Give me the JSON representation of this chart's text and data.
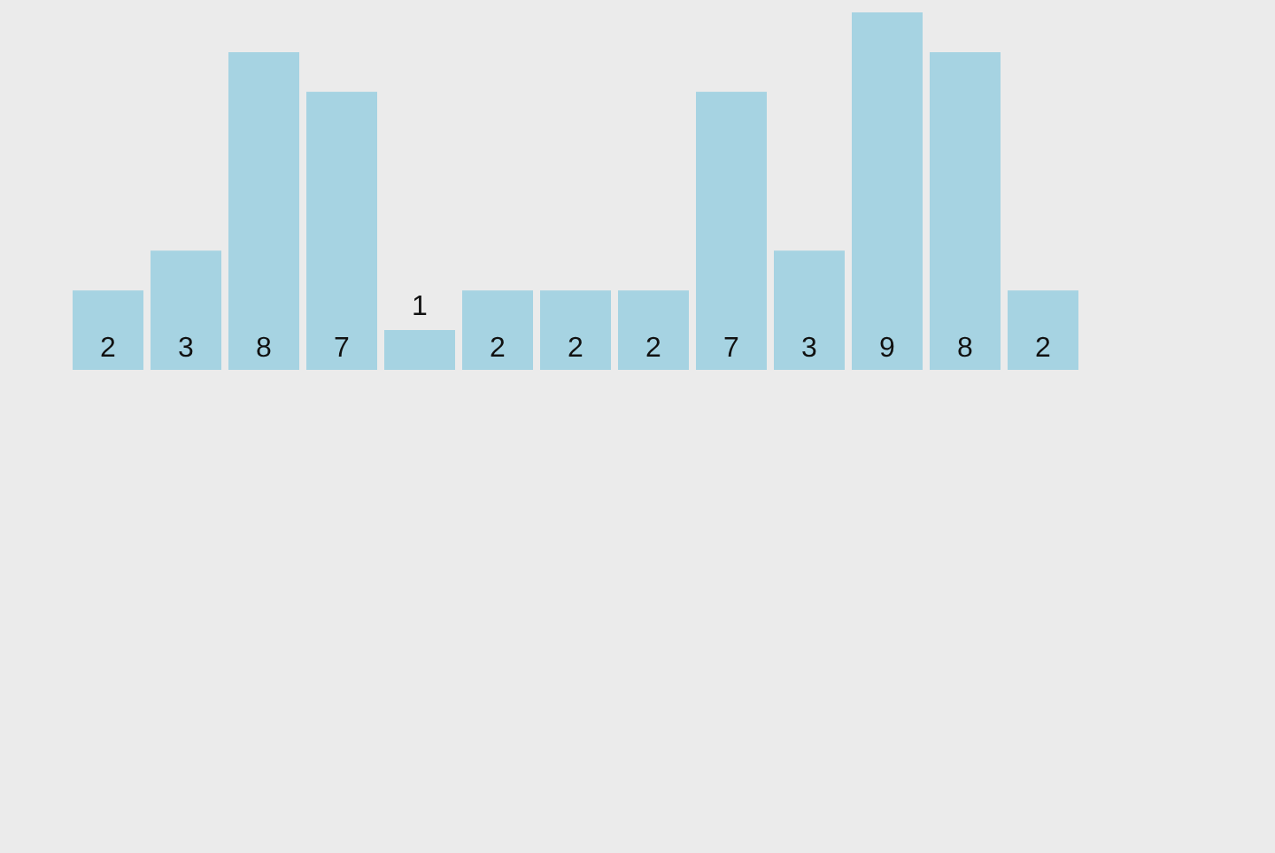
{
  "chart_data": {
    "type": "bar",
    "categories": [
      null,
      null,
      null,
      null,
      null,
      null,
      null,
      null,
      null,
      null,
      null,
      null,
      null
    ],
    "values": [
      2,
      3,
      8,
      7,
      1,
      2,
      2,
      2,
      7,
      3,
      9,
      8,
      2
    ],
    "color": "#a6d3e2",
    "data_labels": true,
    "legend": false,
    "tick_labels": false
  }
}
